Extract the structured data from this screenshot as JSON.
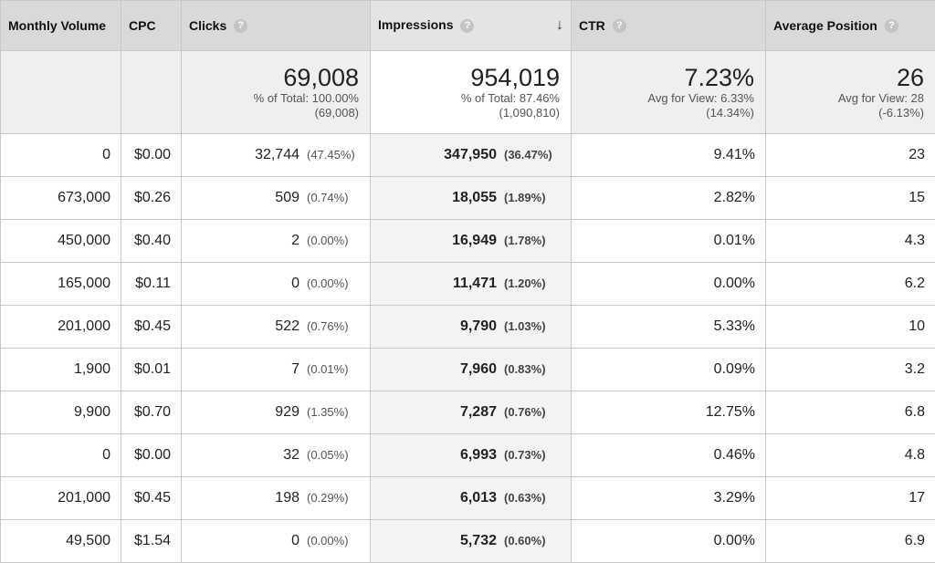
{
  "headers": {
    "monthly_volume": "Monthly Volume",
    "cpc": "CPC",
    "clicks": "Clicks",
    "impressions": "Impressions",
    "ctr": "CTR",
    "avg_position": "Average Position",
    "help_icon": "?",
    "sort_icon": "↓"
  },
  "totals": {
    "clicks": {
      "value": "69,008",
      "line1": "% of Total: 100.00%",
      "line2": "(69,008)"
    },
    "impressions": {
      "value": "954,019",
      "line1": "% of Total: 87.46%",
      "line2": "(1,090,810)"
    },
    "ctr": {
      "value": "7.23%",
      "line1": "Avg for View: 6.33%",
      "line2": "(14.34%)"
    },
    "avg_position": {
      "value": "26",
      "line1": "Avg for View: 28",
      "line2": "(-6.13%)"
    }
  },
  "rows": [
    {
      "volume": "0",
      "cpc": "$0.00",
      "clicks": "32,744",
      "clicks_pct": "(47.45%)",
      "impressions": "347,950",
      "impressions_pct": "(36.47%)",
      "ctr": "9.41%",
      "position": "23"
    },
    {
      "volume": "673,000",
      "cpc": "$0.26",
      "clicks": "509",
      "clicks_pct": "(0.74%)",
      "impressions": "18,055",
      "impressions_pct": "(1.89%)",
      "ctr": "2.82%",
      "position": "15"
    },
    {
      "volume": "450,000",
      "cpc": "$0.40",
      "clicks": "2",
      "clicks_pct": "(0.00%)",
      "impressions": "16,949",
      "impressions_pct": "(1.78%)",
      "ctr": "0.01%",
      "position": "4.3"
    },
    {
      "volume": "165,000",
      "cpc": "$0.11",
      "clicks": "0",
      "clicks_pct": "(0.00%)",
      "impressions": "11,471",
      "impressions_pct": "(1.20%)",
      "ctr": "0.00%",
      "position": "6.2"
    },
    {
      "volume": "201,000",
      "cpc": "$0.45",
      "clicks": "522",
      "clicks_pct": "(0.76%)",
      "impressions": "9,790",
      "impressions_pct": "(1.03%)",
      "ctr": "5.33%",
      "position": "10"
    },
    {
      "volume": "1,900",
      "cpc": "$0.01",
      "clicks": "7",
      "clicks_pct": "(0.01%)",
      "impressions": "7,960",
      "impressions_pct": "(0.83%)",
      "ctr": "0.09%",
      "position": "3.2"
    },
    {
      "volume": "9,900",
      "cpc": "$0.70",
      "clicks": "929",
      "clicks_pct": "(1.35%)",
      "impressions": "7,287",
      "impressions_pct": "(0.76%)",
      "ctr": "12.75%",
      "position": "6.8"
    },
    {
      "volume": "0",
      "cpc": "$0.00",
      "clicks": "32",
      "clicks_pct": "(0.05%)",
      "impressions": "6,993",
      "impressions_pct": "(0.73%)",
      "ctr": "0.46%",
      "position": "4.8"
    },
    {
      "volume": "201,000",
      "cpc": "$0.45",
      "clicks": "198",
      "clicks_pct": "(0.29%)",
      "impressions": "6,013",
      "impressions_pct": "(0.63%)",
      "ctr": "3.29%",
      "position": "17"
    },
    {
      "volume": "49,500",
      "cpc": "$1.54",
      "clicks": "0",
      "clicks_pct": "(0.00%)",
      "impressions": "5,732",
      "impressions_pct": "(0.60%)",
      "ctr": "0.00%",
      "position": "6.9"
    }
  ]
}
